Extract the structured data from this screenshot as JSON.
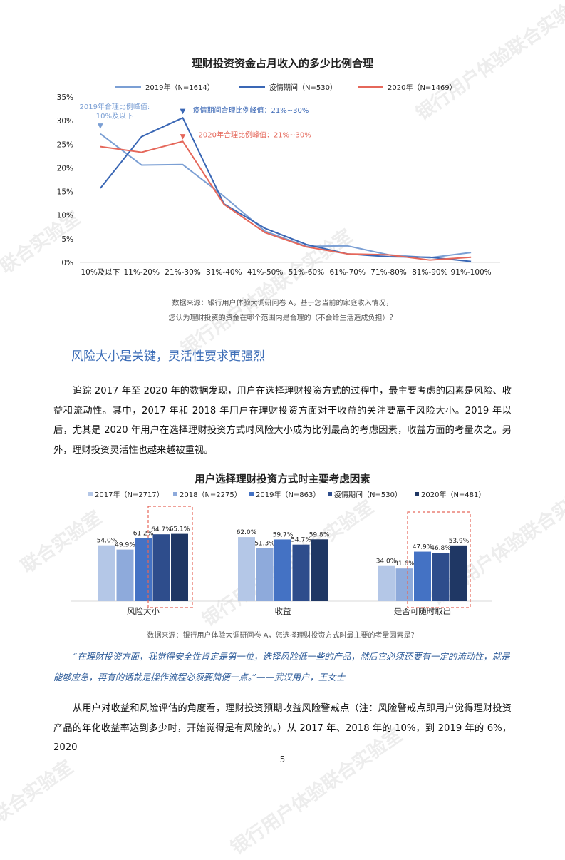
{
  "watermark": {
    "text_1": "银行用户体验联合实验室",
    "text_2": "联合实验室"
  },
  "chart1": {
    "title": "理财投资资金占月收入的多少比例合理",
    "source_line1": "数据来源：银行用户体验大调研问卷 A，基于您当前的家庭收入情况，",
    "source_line2": "您认为理财投资的资金在哪个范围内是合理的（不会给生活造成负担）？"
  },
  "chart2": {
    "title": "用户选择理财投资方式时主要考虑因素",
    "source": "数据来源：银行用户体验大调研问卷 A，您选择理财投资方式时最主要的考量因素是？"
  },
  "chart_data": [
    {
      "type": "line",
      "title": "理财投资资金占月收入的多少比例合理",
      "categories": [
        "10%及以下",
        "11%-20%",
        "21%-30%",
        "31%-40%",
        "41%-50%",
        "51%-60%",
        "61%-70%",
        "71%-80%",
        "81%-90%",
        "91%-100%"
      ],
      "y_ticks": [
        "0%",
        "5%",
        "10%",
        "15%",
        "20%",
        "25%",
        "30%",
        "35%"
      ],
      "ylim": [
        0,
        35
      ],
      "grid": false,
      "legend_position": "top",
      "series": [
        {
          "name": "2019年（N=1614）",
          "color": "#7b9fd4",
          "values": [
            27.2,
            20.6,
            20.7,
            14.0,
            6.6,
            3.4,
            3.5,
            1.6,
            1.0,
            2.1
          ]
        },
        {
          "name": "疫情期间（N=530）",
          "color": "#3a67b5",
          "values": [
            15.7,
            26.6,
            30.6,
            12.4,
            7.2,
            3.8,
            1.8,
            1.2,
            1.1,
            0.2
          ]
        },
        {
          "name": "2020年（N=1469）",
          "color": "#e5675a",
          "values": [
            24.5,
            23.3,
            25.6,
            12.3,
            6.3,
            3.3,
            1.8,
            1.6,
            0.5,
            1.1
          ]
        }
      ],
      "annotations": [
        {
          "text_1": "2019年合理比例峰值:",
          "text_2": "10%及以下",
          "color": "#7b9fd4",
          "marker": "▼"
        },
        {
          "text_1": "疫情期间合理比例峰值：21%~30%",
          "color": "#3a67b5",
          "marker": "▼"
        },
        {
          "text_1": "2020年合理比例峰值：21%~30%",
          "color": "#e5675a",
          "marker": "▼"
        }
      ]
    },
    {
      "type": "bar",
      "title": "用户选择理财投资方式时主要考虑因素",
      "categories": [
        "风险大小",
        "收益",
        "是否可随时取出"
      ],
      "legend_position": "top",
      "series": [
        {
          "name": "2017年（N=2717）",
          "color": "#b4c7e7",
          "values": [
            54.0,
            62.0,
            34.0
          ],
          "labels": [
            "54.0%",
            "62.0%",
            "34.0%"
          ]
        },
        {
          "name": "2018（N=2275）",
          "color": "#8eaadb",
          "values": [
            49.9,
            51.3,
            31.6
          ],
          "labels": [
            "49.9%",
            "51.3%",
            "31.6%"
          ]
        },
        {
          "name": "2019年（N=863）",
          "color": "#4472c4",
          "values": [
            61.2,
            59.7,
            47.9
          ],
          "labels": [
            "61.2%",
            "59.7%",
            "47.9%"
          ]
        },
        {
          "name": "疫情期间（N=530）",
          "color": "#2e4d8c",
          "values": [
            64.7,
            54.7,
            46.8
          ],
          "labels": [
            "64.7%",
            "54.7%",
            "46.8%"
          ]
        },
        {
          "name": "2020年（N=481）",
          "color": "#1f3764",
          "values": [
            65.1,
            59.8,
            53.9
          ],
          "labels": [
            "65.1%",
            "59.8%",
            "53.9%"
          ]
        }
      ]
    }
  ],
  "section": {
    "heading": "风险大小是关键，灵活性要求更强烈"
  },
  "paragraph1": "追踪 2017 年至 2020 年的数据发现，用户在选择理财投资方式的过程中，最主要考虑的因素是风险、收益和流动性。其中，2017 年和 2018 年用户在理财投资方面对于收益的关注要高于风险大小。2019 年以后，尤其是 2020 年用户在选择理财投资方式时风险大小成为比例最高的考虑因素，收益方面的考量次之。另外，理财投资灵活性也越来越被重视。",
  "quote": "“在理财投资方面，我觉得安全性肯定是第一位，选择风险低一些的产品，然后它必须还要有一定的流动性，就是能够应急，再有的话就是操作流程必须要简便一点。”——武汉用户，王女士",
  "paragraph2": "从用户对收益和风险评估的角度看，理财投资预期收益风险警戒点（注：风险警戒点即用户觉得理财投资产品的年化收益率达到多少时，开始觉得是有风险的。）从 2017 年、2018 年的 10%，到 2019 年的 6%，2020",
  "page_number": "5"
}
